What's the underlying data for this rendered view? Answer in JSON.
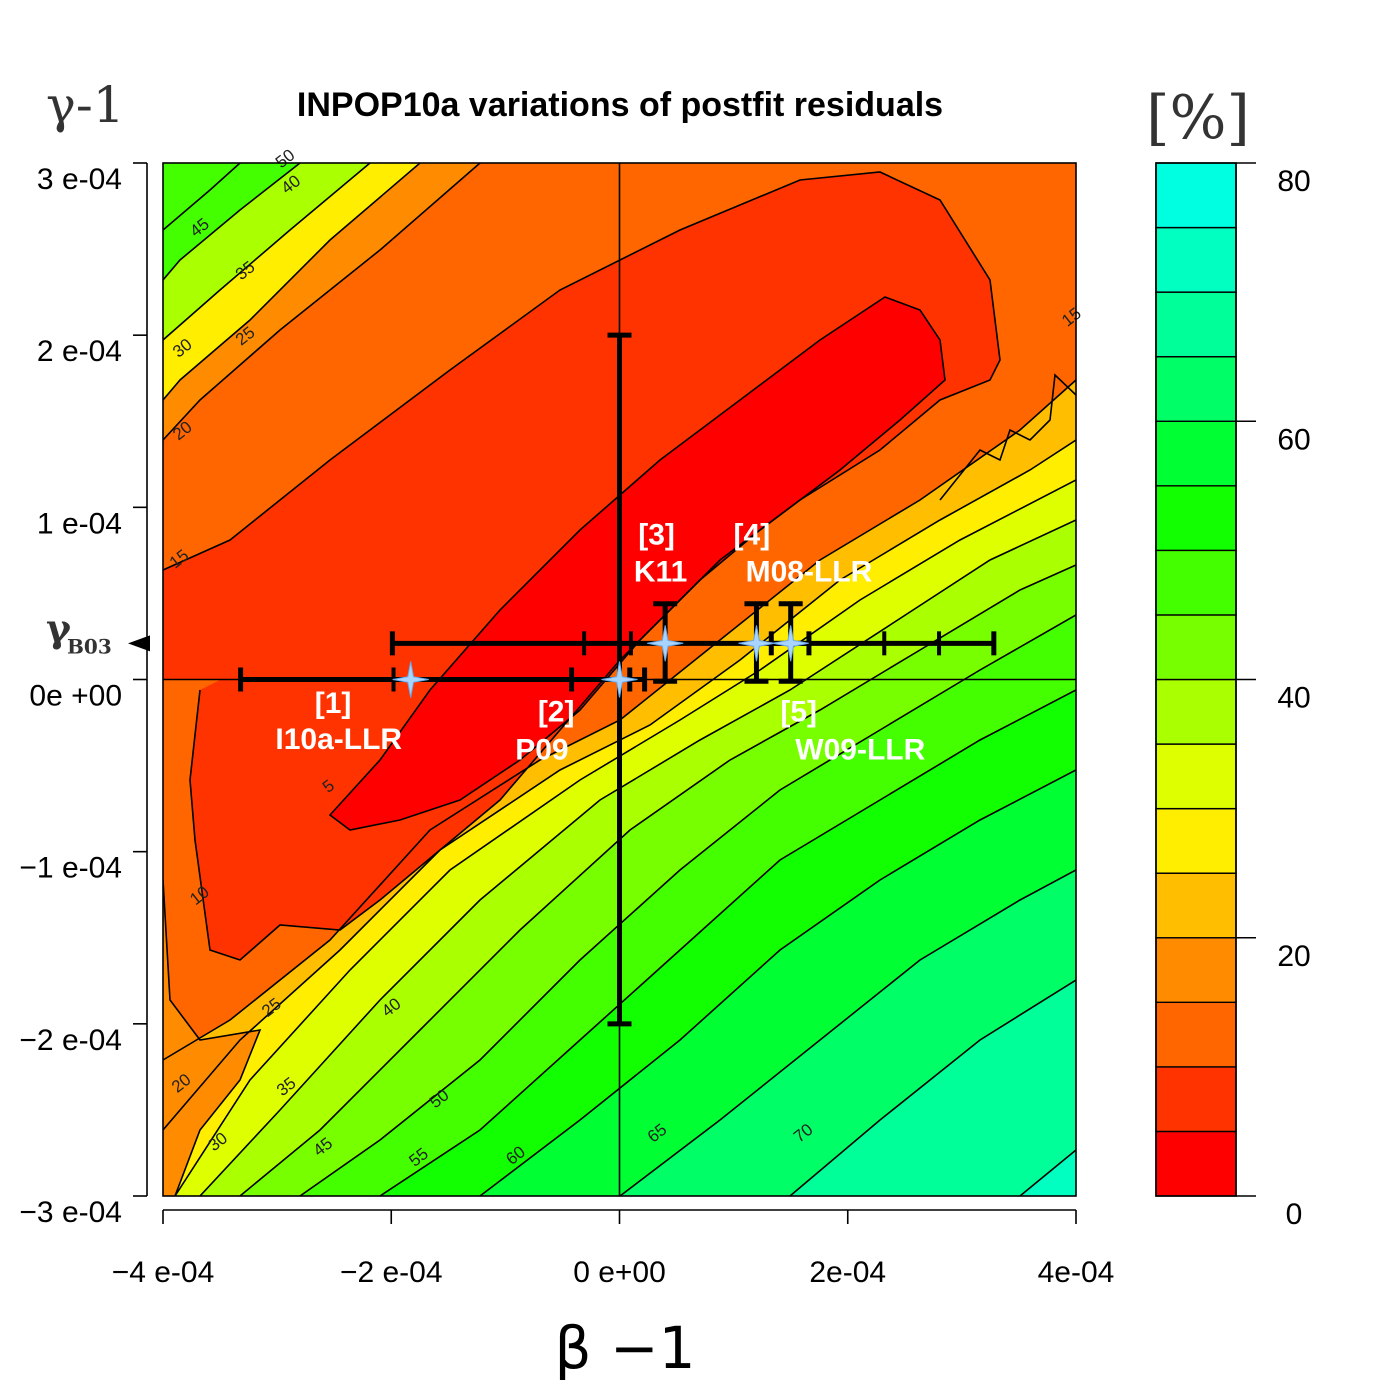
{
  "chart_data": {
    "type": "contour",
    "title": "INPOP10a variations of postfit residuals",
    "xlabel": "β −1",
    "ylabel": "γ-1",
    "colorbar_unit": "[%]",
    "xlim": [
      -0.0004,
      0.0004
    ],
    "ylim": [
      -0.0003,
      0.0003
    ],
    "x_ticks": [
      {
        "value": -0.0004,
        "label": "−4 e-04"
      },
      {
        "value": -0.0002,
        "label": "−2 e-04"
      },
      {
        "value": 0,
        "label": "0 e+00"
      },
      {
        "value": 0.0002,
        "label": "2e-04"
      },
      {
        "value": 0.0004,
        "label": "4e-04"
      }
    ],
    "y_ticks": [
      {
        "value": 0.0003,
        "label": "3 e-04"
      },
      {
        "value": 0.0002,
        "label": "2 e-04"
      },
      {
        "value": 0.0001,
        "label": "1 e-04"
      },
      {
        "value": 0,
        "label": "0e +00"
      },
      {
        "value": -0.0001,
        "label": "−1 e-04"
      },
      {
        "value": -0.0002,
        "label": "−2 e-04"
      },
      {
        "value": -0.0003,
        "label": "−3 e-04"
      }
    ],
    "colorbar": {
      "range": [
        0,
        80
      ],
      "ticks": [
        0,
        20,
        40,
        60,
        80
      ],
      "level_step": 5,
      "colors": [
        "#ff0000",
        "#ff3300",
        "#ff6600",
        "#ff8c00",
        "#ffbf00",
        "#ffee00",
        "#ddff00",
        "#aaff00",
        "#77ff00",
        "#44ff00",
        "#11ff00",
        "#00ff33",
        "#00ff66",
        "#00ff99",
        "#00ffc0",
        "#00ffe0"
      ]
    },
    "contour_labels": [
      {
        "value": "50",
        "at": [
          -0.00029,
          0.0003
        ]
      },
      {
        "value": "45",
        "at": [
          -0.000365,
          0.00026
        ]
      },
      {
        "value": "40",
        "at": [
          -0.000285,
          0.000285
        ]
      },
      {
        "value": "35",
        "at": [
          -0.000325,
          0.000235
        ]
      },
      {
        "value": "30",
        "at": [
          -0.00038,
          0.00019
        ]
      },
      {
        "value": "25",
        "at": [
          -0.000325,
          0.000197
        ]
      },
      {
        "value": "20",
        "at": [
          -0.00038,
          0.000142
        ]
      },
      {
        "value": "15",
        "at": [
          -0.000383,
          6.75e-05
        ]
      },
      {
        "value": "15",
        "at": [
          0.000399,
          0.000208
        ]
      },
      {
        "value": "5",
        "at": [
          -0.000252,
          -6.45e-05
        ]
      },
      {
        "value": "10",
        "at": [
          -0.000365,
          -0.000128
        ]
      },
      {
        "value": "25",
        "at": [
          -0.000302,
          -0.000193
        ]
      },
      {
        "value": "40",
        "at": [
          -0.000197,
          -0.000193
        ]
      },
      {
        "value": "20",
        "at": [
          -0.000381,
          -0.000237
        ]
      },
      {
        "value": "35",
        "at": [
          -0.000289,
          -0.000239
        ]
      },
      {
        "value": "50",
        "at": [
          -0.000155,
          -0.000246
        ]
      },
      {
        "value": "30",
        "at": [
          -0.000349,
          -0.000271
        ]
      },
      {
        "value": "45",
        "at": [
          -0.000257,
          -0.000274
        ]
      },
      {
        "value": "55",
        "at": [
          -0.000173,
          -0.00028
        ]
      },
      {
        "value": "60",
        "at": [
          -8.8e-05,
          -0.000279
        ]
      },
      {
        "value": "65",
        "at": [
          3.6e-05,
          -0.000266
        ]
      },
      {
        "value": "70",
        "at": [
          0.000164,
          -0.000266
        ]
      }
    ],
    "reference_lines": {
      "x": 0,
      "y": 0
    },
    "gamma_marker": {
      "label": "γ",
      "subscript": "B03",
      "value": 2.1e-05
    },
    "series": [
      {
        "id": "1",
        "label": "[1]",
        "name": "I10a-LLR",
        "beta": -0.000183,
        "gamma": 0,
        "beta_err": [
          -0.000332,
          2.2e-05
        ],
        "gamma_err": null,
        "beta_ticks": [
          -0.000198
        ]
      },
      {
        "id": "2",
        "label": "[2]",
        "name": "P09",
        "beta": 0,
        "gamma": 0,
        "beta_err": [
          -4.2e-05,
          9e-06
        ],
        "gamma_err": [
          -0.0002,
          0.0002
        ],
        "beta_ticks": []
      },
      {
        "id": "3",
        "label": "[3]",
        "name": "K11",
        "beta": 4e-05,
        "gamma": 2.1e-05,
        "beta_err": [
          -0.000199,
          0.000328
        ],
        "gamma_err": [
          -1e-06,
          4.4e-05
        ],
        "beta_ticks": [
          -3.1e-05,
          1e-05,
          0.000232,
          0.00028
        ]
      },
      {
        "id": "4",
        "label": "[4]",
        "name": "M08-LLR",
        "beta": 0.00012,
        "gamma": 2.1e-05,
        "beta_err": null,
        "gamma_err": [
          -1e-06,
          4.4e-05
        ],
        "beta_ticks": []
      },
      {
        "id": "5",
        "label": "[5]",
        "name": "W09-LLR",
        "beta": 0.00015,
        "gamma": 2.1e-05,
        "beta_err": [
          0.000133,
          0.000166
        ],
        "gamma_err": [
          -1e-06,
          4.4e-05
        ],
        "beta_ticks": []
      }
    ],
    "marker_labels": [
      {
        "series": "1",
        "id_at": [
          -0.000251,
          -1.95e-05
        ],
        "name_at": [
          -0.000246,
          -4.05e-05
        ]
      },
      {
        "series": "2",
        "id_at": [
          -5.55e-05,
          -2.45e-05
        ],
        "name_at": [
          -6.8e-05,
          -4.65e-05
        ]
      },
      {
        "series": "3",
        "id_at": [
          3.25e-05,
          7.85e-05
        ],
        "name_at": [
          3.6e-05,
          5.7e-05
        ]
      },
      {
        "series": "4",
        "id_at": [
          0.000116,
          7.85e-05
        ],
        "name_at": [
          0.000166,
          5.7e-05
        ]
      },
      {
        "series": "5",
        "id_at": [
          0.000157,
          -2.45e-05
        ],
        "name_at": [
          0.000211,
          -4.65e-05
        ]
      }
    ]
  }
}
